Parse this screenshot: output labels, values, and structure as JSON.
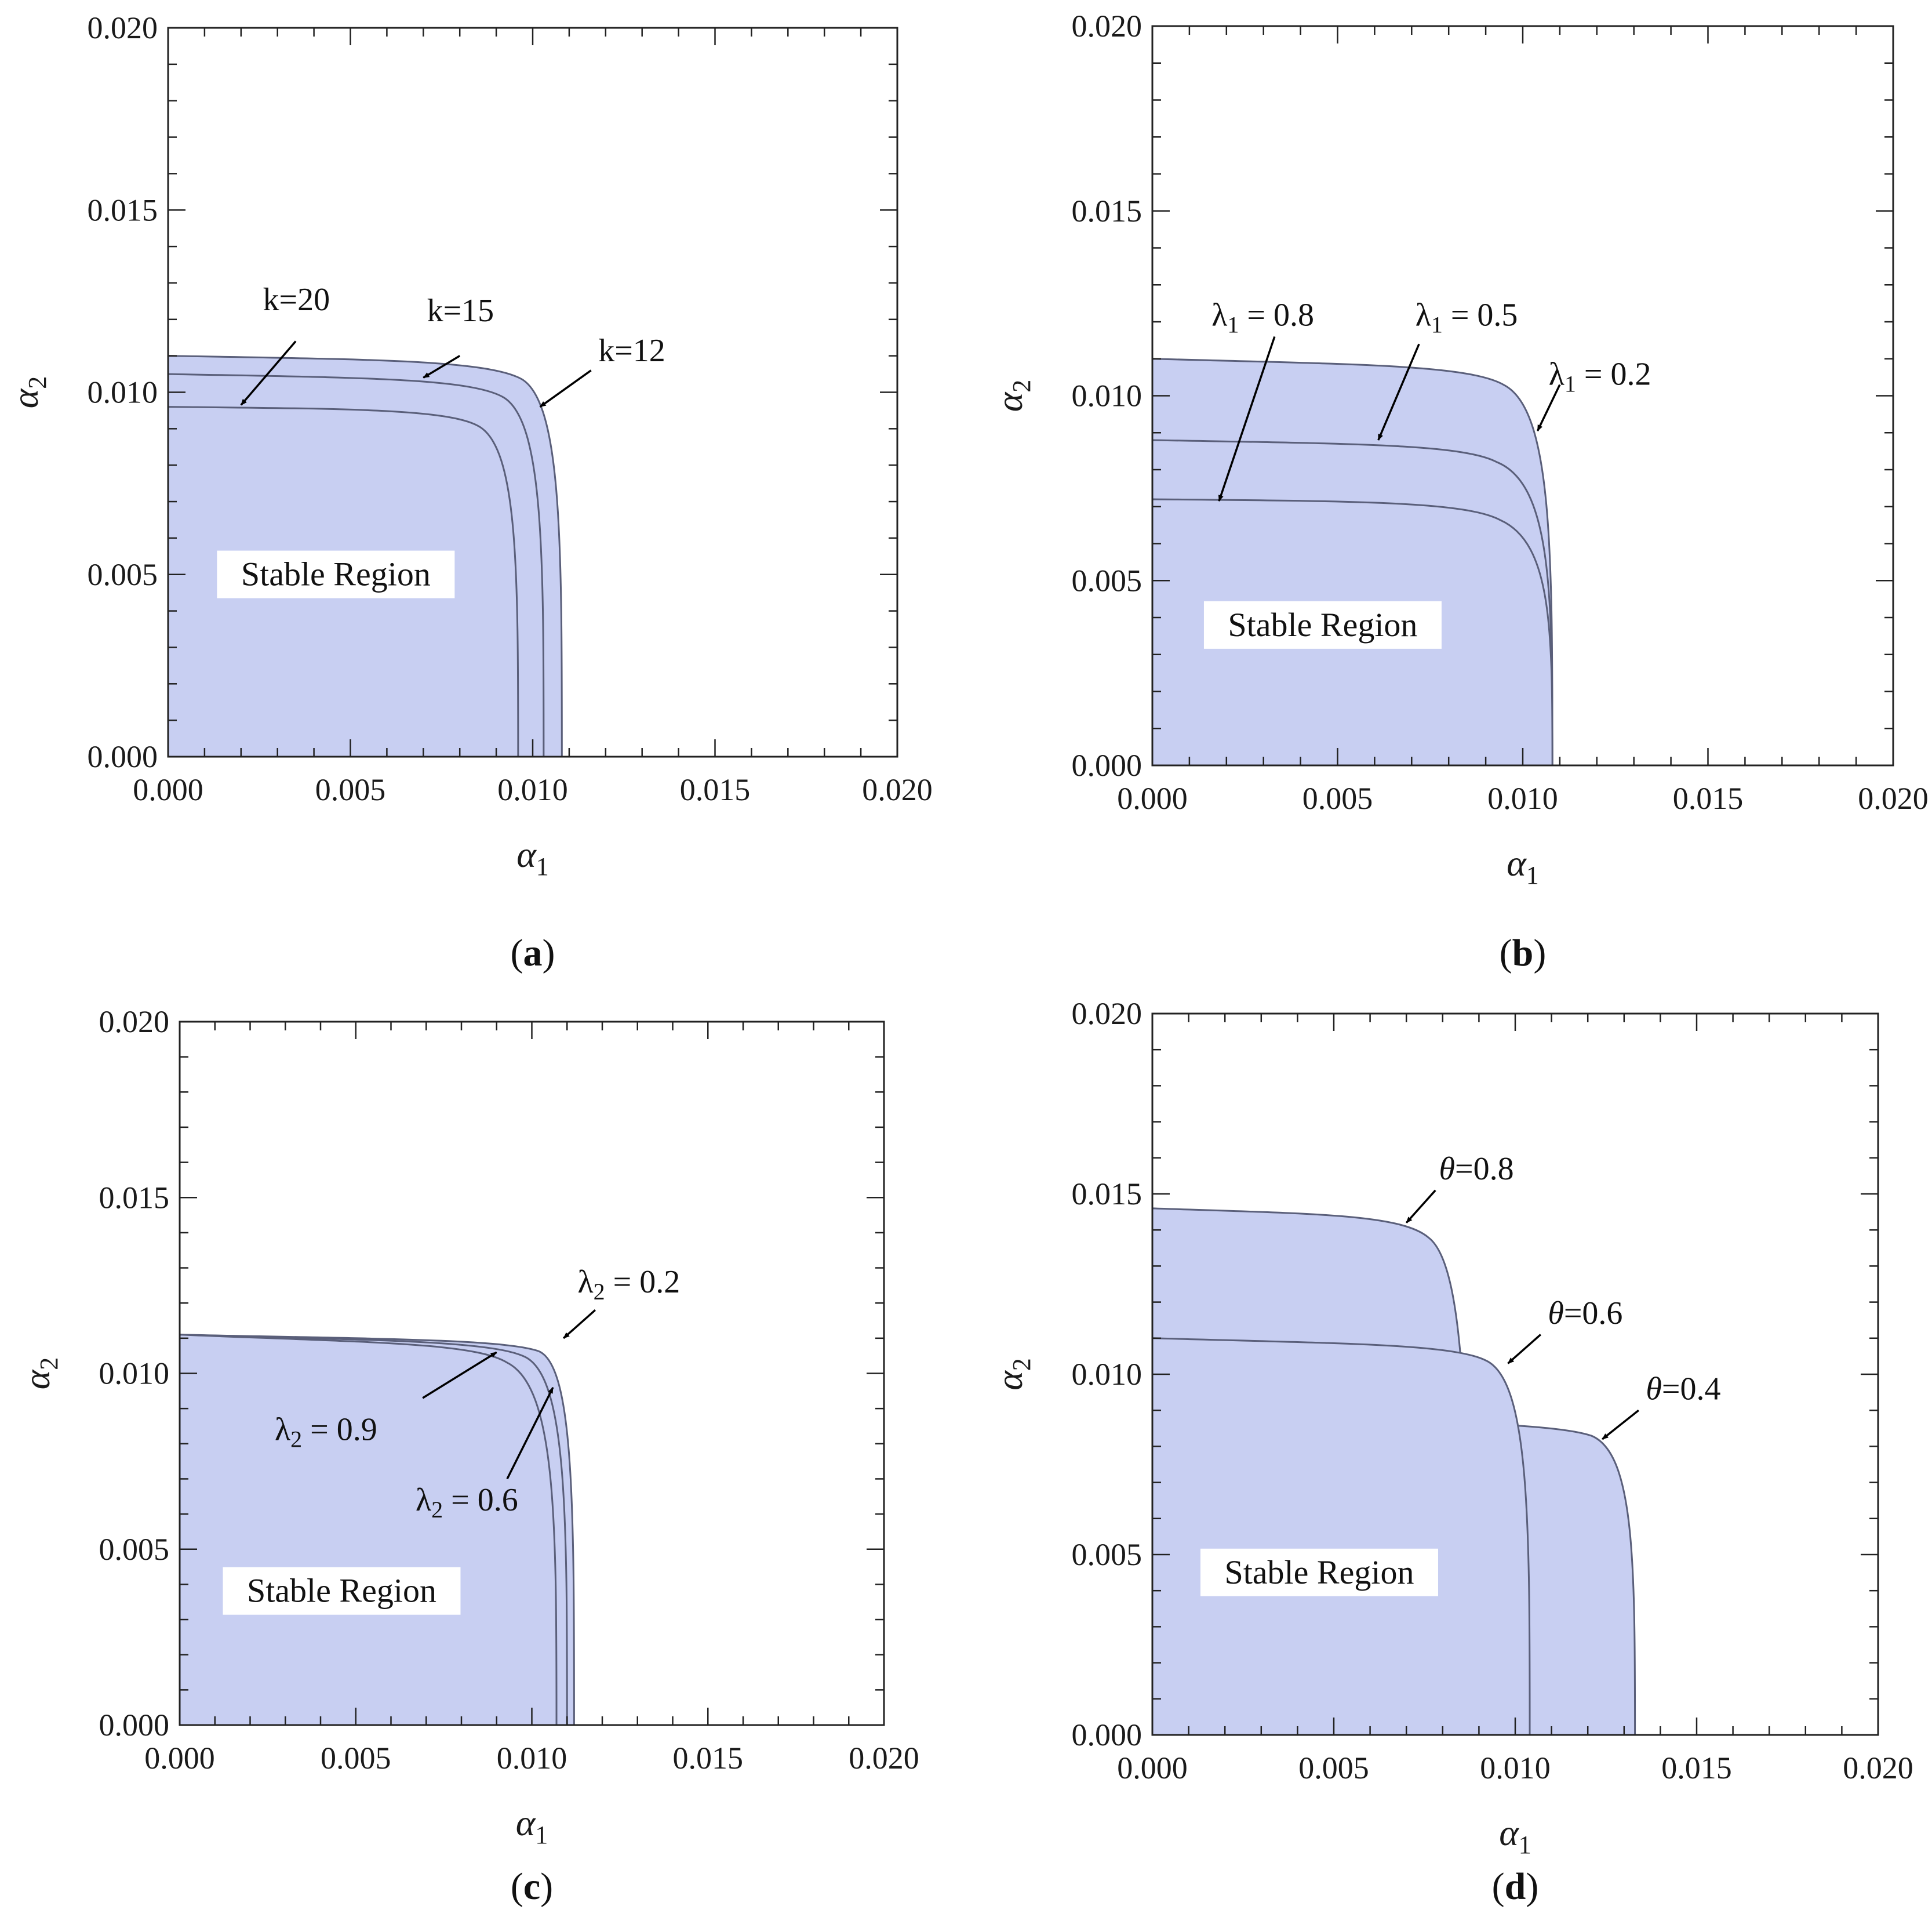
{
  "chart_data": [
    {
      "type": "area",
      "panel": "a",
      "caption_letter": "a",
      "xlabel_base": "α",
      "xlabel_sub": "1",
      "ylabel_base": "α",
      "ylabel_sub": "2",
      "xlim": [
        0,
        0.02
      ],
      "ylim": [
        0,
        0.02
      ],
      "x_ticks": [
        "0.000",
        "0.005",
        "0.010",
        "0.015",
        "0.020"
      ],
      "y_ticks": [
        "0.000",
        "0.005",
        "0.010",
        "0.015",
        "0.020"
      ],
      "region_label": "Stable Region",
      "series": [
        {
          "name": "k=12",
          "x_max": 0.0108,
          "y_max": 0.011,
          "x_corner": 0.0097,
          "y_corner": 0.0097,
          "y_mid": 0.0109
        },
        {
          "name": "k=15",
          "x_max": 0.0103,
          "y_max": 0.0105,
          "x_corner": 0.0092,
          "y_corner": 0.0092,
          "y_mid": 0.0104
        },
        {
          "name": "k=20",
          "x_max": 0.0096,
          "y_max": 0.0096,
          "x_corner": 0.0085,
          "y_corner": 0.0085,
          "y_mid": 0.00955
        }
      ],
      "annotations": [
        {
          "label_base": "k=20",
          "label_sub": "",
          "label_rest": "",
          "text_x": 0.0026,
          "text_y": 0.01225,
          "arrow_to": [
            0.002,
            0.00965
          ],
          "arrow_from": [
            0.0035,
            0.0114
          ]
        },
        {
          "label_base": "k=15",
          "label_sub": "",
          "label_rest": "",
          "text_x": 0.0071,
          "text_y": 0.01195,
          "arrow_to": [
            0.007,
            0.0104
          ],
          "arrow_from": [
            0.008,
            0.011
          ]
        },
        {
          "label_base": "k=12",
          "label_sub": "",
          "label_rest": "",
          "text_x": 0.0118,
          "text_y": 0.01085,
          "arrow_to": [
            0.0102,
            0.0096
          ],
          "arrow_from": [
            0.0116,
            0.0106
          ]
        }
      ]
    },
    {
      "type": "area",
      "panel": "b",
      "caption_letter": "b",
      "xlabel_base": "α",
      "xlabel_sub": "1",
      "ylabel_base": "α",
      "ylabel_sub": "2",
      "xlim": [
        0,
        0.02
      ],
      "ylim": [
        0,
        0.02
      ],
      "x_ticks": [
        "0.000",
        "0.005",
        "0.010",
        "0.015",
        "0.020"
      ],
      "y_ticks": [
        "0.000",
        "0.005",
        "0.010",
        "0.015",
        "0.020"
      ],
      "region_label": "Stable Region",
      "series": [
        {
          "name": "λ1 = 0.2",
          "x_max": 0.0108,
          "y_max": 0.011,
          "x_corner": 0.0095,
          "y_corner": 0.0096,
          "y_mid": 0.01085
        },
        {
          "name": "λ1 = 0.5",
          "x_max": 0.0108,
          "y_max": 0.0088,
          "x_corner": 0.0093,
          "y_corner": 0.0076,
          "y_mid": 0.0087
        },
        {
          "name": "λ1 = 0.8",
          "x_max": 0.0108,
          "y_max": 0.0072,
          "x_corner": 0.0094,
          "y_corner": 0.006,
          "y_mid": 0.00715
        }
      ],
      "annotations": [
        {
          "label_base": "λ",
          "label_sub": "1",
          "label_rest": " = 0.8",
          "text_x": 0.0016,
          "text_y": 0.0119,
          "arrow_to": [
            0.0018,
            0.00715
          ],
          "arrow_from": [
            0.0033,
            0.0116
          ]
        },
        {
          "label_base": "λ",
          "label_sub": "1",
          "label_rest": " = 0.5",
          "text_x": 0.0071,
          "text_y": 0.0119,
          "arrow_to": [
            0.0061,
            0.0088
          ],
          "arrow_from": [
            0.0072,
            0.0114
          ]
        },
        {
          "label_base": "λ",
          "label_sub": "1",
          "label_rest": " = 0.2",
          "text_x": 0.0107,
          "text_y": 0.0103,
          "arrow_to": [
            0.0104,
            0.00905
          ],
          "arrow_from": [
            0.011,
            0.0103
          ]
        }
      ]
    },
    {
      "type": "area",
      "panel": "c",
      "caption_letter": "c",
      "xlabel_base": "α",
      "xlabel_sub": "1",
      "ylabel_base": "α",
      "ylabel_sub": "2",
      "xlim": [
        0,
        0.02
      ],
      "ylim": [
        0,
        0.02
      ],
      "x_ticks": [
        "0.000",
        "0.005",
        "0.010",
        "0.015",
        "0.020"
      ],
      "y_ticks": [
        "0.000",
        "0.005",
        "0.010",
        "0.015",
        "0.020"
      ],
      "region_label": "Stable Region",
      "series": [
        {
          "name": "λ2 = 0.2",
          "x_max": 0.0112,
          "y_max": 0.0111,
          "x_corner": 0.0102,
          "y_corner": 0.0102,
          "y_mid": 0.01098
        },
        {
          "name": "λ2 = 0.6",
          "x_max": 0.011,
          "y_max": 0.0111,
          "x_corner": 0.0098,
          "y_corner": 0.0099,
          "y_mid": 0.01094
        },
        {
          "name": "λ2 = 0.9",
          "x_max": 0.0107,
          "y_max": 0.0111,
          "x_corner": 0.0093,
          "y_corner": 0.0096,
          "y_mid": 0.01088
        }
      ],
      "annotations": [
        {
          "label_base": "λ",
          "label_sub": "2",
          "label_rest": " = 0.2",
          "text_x": 0.0113,
          "text_y": 0.0123,
          "arrow_to": [
            0.0109,
            0.011
          ],
          "arrow_from": [
            0.0118,
            0.0118
          ]
        },
        {
          "label_base": "λ",
          "label_sub": "2",
          "label_rest": " = 0.9",
          "text_x": 0.0027,
          "text_y": 0.0081,
          "arrow_to": [
            0.009,
            0.0106
          ],
          "arrow_from": [
            0.0069,
            0.0093
          ]
        },
        {
          "label_base": "λ",
          "label_sub": "2",
          "label_rest": " = 0.6",
          "text_x": 0.0067,
          "text_y": 0.0061,
          "arrow_to": [
            0.0106,
            0.0096
          ],
          "arrow_from": [
            0.0093,
            0.007
          ]
        }
      ]
    },
    {
      "type": "area",
      "panel": "d",
      "caption_letter": "d",
      "xlabel_base": "α",
      "xlabel_sub": "1",
      "ylabel_base": "α",
      "ylabel_sub": "2",
      "xlim": [
        0,
        0.02
      ],
      "ylim": [
        0,
        0.02
      ],
      "x_ticks": [
        "0.000",
        "0.005",
        "0.010",
        "0.015",
        "0.020"
      ],
      "y_ticks": [
        "0.000",
        "0.005",
        "0.010",
        "0.015",
        "0.020"
      ],
      "region_label": "Stable Region",
      "series": [
        {
          "name": "θ=0.8",
          "x_max": 0.0087,
          "y_max": 0.0146,
          "x_corner": 0.0076,
          "y_corner": 0.013,
          "y_mid": 0.01445
        },
        {
          "name": "θ=0.6",
          "x_max": 0.0104,
          "y_max": 0.011,
          "x_corner": 0.0092,
          "y_corner": 0.0098,
          "y_mid": 0.01085
        },
        {
          "name": "θ=0.4",
          "x_max": 0.0133,
          "y_max": 0.0088,
          "x_corner": 0.0121,
          "y_corner": 0.0078,
          "y_mid": 0.0087
        }
      ],
      "annotations": [
        {
          "label_base": "θ",
          "label_sub": "",
          "label_rest": "=0.8",
          "text_x": 0.0079,
          "text_y": 0.0154,
          "arrow_to": [
            0.007,
            0.0142
          ],
          "arrow_from": [
            0.0078,
            0.0151
          ]
        },
        {
          "label_base": "θ",
          "label_sub": "",
          "label_rest": "=0.6",
          "text_x": 0.0109,
          "text_y": 0.0114,
          "arrow_to": [
            0.0098,
            0.0103
          ],
          "arrow_from": [
            0.0107,
            0.0111
          ]
        },
        {
          "label_base": "θ",
          "label_sub": "",
          "label_rest": "=0.4",
          "text_x": 0.0136,
          "text_y": 0.0093,
          "arrow_to": [
            0.0124,
            0.0082
          ],
          "arrow_from": [
            0.0134,
            0.009
          ]
        }
      ]
    }
  ]
}
